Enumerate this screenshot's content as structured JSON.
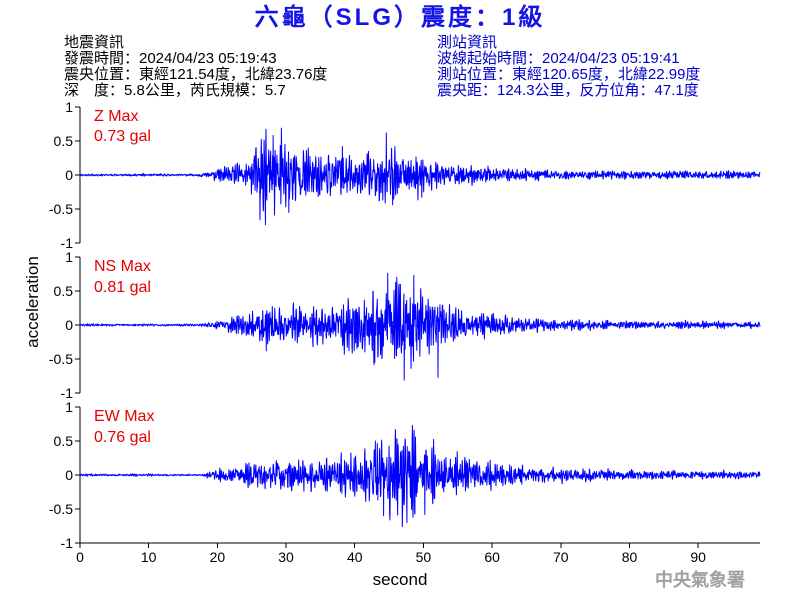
{
  "header": {
    "title": "六龜（SLG）震度：1級"
  },
  "earthquake_info": {
    "heading": "地震資訊",
    "origin_time": "發震時間：2024/04/23 05:19:43",
    "epicenter": "震央位置：東經121.54度，北緯23.76度",
    "depth_magnitude": "深　度：5.8公里，芮氏規模：5.7"
  },
  "station_info": {
    "heading": "測站資訊",
    "waveform_start_time": "波線起始時間：2024/04/23 05:19:41",
    "station_location": "測站位置：東經120.65度，北緯22.99度",
    "epicentral_distance_back_azimuth": "震央距：124.3公里，反方位角：47.1度"
  },
  "footer": {
    "agency": "中央氣象署"
  },
  "colors": {
    "title": "#1414e6",
    "earthquake_info": "#000000",
    "station_info": "#0000c8",
    "component_label": "#e60000",
    "agency": "#a0a0a0"
  },
  "chart_data": {
    "type": "line",
    "xlabel": "second",
    "ylabel": "acceleration",
    "xlim": [
      0,
      99
    ],
    "xticks": [
      "0",
      "10",
      "20",
      "30",
      "40",
      "50",
      "60",
      "70",
      "80",
      "90"
    ],
    "ylim": [
      -1,
      1
    ],
    "yticks": [
      "1",
      "0.5",
      "0",
      "-0.5",
      "-1"
    ],
    "grid": false,
    "series": [
      {
        "name": "Z Max",
        "max_label": "0.73 gal",
        "color": "#0000ff",
        "amplitude_envelope": [
          [
            0,
            0.02
          ],
          [
            17,
            0.02
          ],
          [
            18.5,
            0.06
          ],
          [
            20,
            0.1
          ],
          [
            22,
            0.16
          ],
          [
            24,
            0.26
          ],
          [
            25.5,
            0.5
          ],
          [
            26.5,
            0.68
          ],
          [
            28.5,
            0.66
          ],
          [
            30.5,
            0.58
          ],
          [
            32,
            0.46
          ],
          [
            35,
            0.38
          ],
          [
            38,
            0.36
          ],
          [
            41,
            0.4
          ],
          [
            44,
            0.46
          ],
          [
            47,
            0.4
          ],
          [
            50,
            0.34
          ],
          [
            53,
            0.23
          ],
          [
            56,
            0.17
          ],
          [
            60,
            0.13
          ],
          [
            65,
            0.1
          ],
          [
            70,
            0.08
          ],
          [
            80,
            0.07
          ],
          [
            90,
            0.065
          ],
          [
            99,
            0.06
          ]
        ],
        "peaks": [
          [
            27.0,
            -0.73
          ],
          [
            26.2,
            -0.66
          ],
          [
            29.3,
            0.69
          ],
          [
            28.1,
            0.58
          ],
          [
            30.4,
            -0.55
          ],
          [
            44.6,
            0.62
          ],
          [
            38.2,
            0.42
          ],
          [
            45.5,
            -0.44
          ]
        ]
      },
      {
        "name": "NS Max",
        "max_label": "0.81 gal",
        "color": "#0000ff",
        "amplitude_envelope": [
          [
            0,
            0.02
          ],
          [
            17.5,
            0.02
          ],
          [
            19,
            0.05
          ],
          [
            21,
            0.09
          ],
          [
            23,
            0.18
          ],
          [
            26,
            0.26
          ],
          [
            29,
            0.33
          ],
          [
            33,
            0.32
          ],
          [
            37,
            0.35
          ],
          [
            40,
            0.46
          ],
          [
            43,
            0.6
          ],
          [
            45.5,
            0.72
          ],
          [
            48,
            0.7
          ],
          [
            50,
            0.56
          ],
          [
            52,
            0.5
          ],
          [
            54,
            0.36
          ],
          [
            57,
            0.26
          ],
          [
            60,
            0.19
          ],
          [
            65,
            0.13
          ],
          [
            70,
            0.09
          ],
          [
            80,
            0.07
          ],
          [
            90,
            0.065
          ],
          [
            99,
            0.06
          ]
        ],
        "peaks": [
          [
            47.2,
            -0.81
          ],
          [
            44.8,
            0.76
          ],
          [
            48.6,
            0.73
          ],
          [
            52.1,
            -0.77
          ],
          [
            46.1,
            0.7
          ],
          [
            42.9,
            -0.55
          ],
          [
            27.1,
            -0.38
          ]
        ]
      },
      {
        "name": "EW Max",
        "max_label": "0.76 gal",
        "color": "#0000ff",
        "amplitude_envelope": [
          [
            0,
            0.02
          ],
          [
            17.5,
            0.02
          ],
          [
            19,
            0.06
          ],
          [
            21,
            0.12
          ],
          [
            24,
            0.2
          ],
          [
            27,
            0.26
          ],
          [
            31,
            0.28
          ],
          [
            35,
            0.28
          ],
          [
            38,
            0.33
          ],
          [
            41,
            0.43
          ],
          [
            44,
            0.58
          ],
          [
            46.5,
            0.7
          ],
          [
            49,
            0.62
          ],
          [
            51,
            0.48
          ],
          [
            54,
            0.38
          ],
          [
            57,
            0.27
          ],
          [
            61,
            0.2
          ],
          [
            66,
            0.14
          ],
          [
            73,
            0.1
          ],
          [
            80,
            0.08
          ],
          [
            90,
            0.07
          ],
          [
            99,
            0.06
          ]
        ],
        "peaks": [
          [
            46.9,
            -0.76
          ],
          [
            48.4,
            0.73
          ],
          [
            45.9,
            0.67
          ],
          [
            47.6,
            -0.7
          ],
          [
            44.2,
            -0.6
          ],
          [
            50.2,
            -0.58
          ],
          [
            43.0,
            0.5
          ]
        ]
      }
    ]
  }
}
